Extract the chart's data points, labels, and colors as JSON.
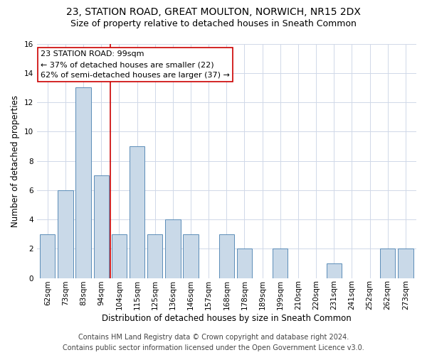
{
  "title": "23, STATION ROAD, GREAT MOULTON, NORWICH, NR15 2DX",
  "subtitle": "Size of property relative to detached houses in Sneath Common",
  "xlabel": "Distribution of detached houses by size in Sneath Common",
  "ylabel": "Number of detached properties",
  "categories": [
    "62sqm",
    "73sqm",
    "83sqm",
    "94sqm",
    "104sqm",
    "115sqm",
    "125sqm",
    "136sqm",
    "146sqm",
    "157sqm",
    "168sqm",
    "178sqm",
    "189sqm",
    "199sqm",
    "210sqm",
    "220sqm",
    "231sqm",
    "241sqm",
    "252sqm",
    "262sqm",
    "273sqm"
  ],
  "values": [
    3,
    6,
    13,
    7,
    3,
    9,
    3,
    4,
    3,
    0,
    3,
    2,
    0,
    2,
    0,
    0,
    1,
    0,
    0,
    2,
    2
  ],
  "bar_color": "#c9d9e8",
  "bar_edgecolor": "#5b8db8",
  "vline_x": 3.5,
  "vline_color": "#cc0000",
  "annotation_line1": "23 STATION ROAD: 99sqm",
  "annotation_line2": "← 37% of detached houses are smaller (22)",
  "annotation_line3": "62% of semi-detached houses are larger (37) →",
  "annotation_color": "#cc0000",
  "ylim": [
    0,
    16
  ],
  "yticks": [
    0,
    2,
    4,
    6,
    8,
    10,
    12,
    14,
    16
  ],
  "footer_line1": "Contains HM Land Registry data © Crown copyright and database right 2024.",
  "footer_line2": "Contains public sector information licensed under the Open Government Licence v3.0.",
  "title_fontsize": 10,
  "subtitle_fontsize": 9,
  "axis_label_fontsize": 8.5,
  "tick_fontsize": 7.5,
  "annotation_fontsize": 8,
  "footer_fontsize": 7,
  "background_color": "#ffffff",
  "grid_color": "#d0d8e8"
}
